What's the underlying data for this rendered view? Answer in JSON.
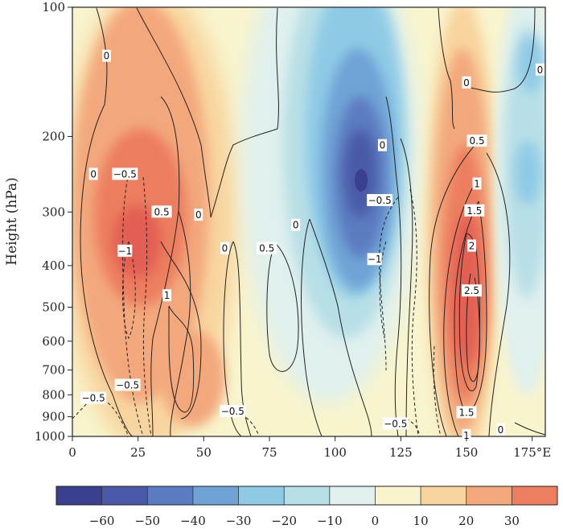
{
  "chart_data": {
    "type": "heatmap",
    "title": "",
    "xlabel": "",
    "ylabel": "Height (hPa)",
    "x_axis": {
      "range": [
        0,
        180
      ],
      "ticks": [
        0,
        25,
        50,
        75,
        100,
        125,
        150,
        175
      ],
      "tick_labels": [
        "0",
        "25",
        "50",
        "75",
        "100",
        "125",
        "150",
        "175°E"
      ]
    },
    "y_axis": {
      "scale": "log",
      "range": [
        1000,
        100
      ],
      "ticks": [
        100,
        200,
        300,
        400,
        500,
        600,
        700,
        800,
        900,
        1000
      ],
      "tick_labels": [
        "100",
        "200",
        "300",
        "400",
        "500",
        "600",
        "700",
        "800",
        "900",
        "1000"
      ]
    },
    "colorbar": {
      "levels": [
        -70,
        -60,
        -50,
        -40,
        -30,
        -20,
        -10,
        0,
        10,
        20,
        30,
        40
      ],
      "tick_labels": [
        "−60",
        "−50",
        "−40",
        "−30",
        "−20",
        "−10",
        "0",
        "10",
        "20",
        "30"
      ],
      "colors": [
        "#3a3f8f",
        "#4a5aa8",
        "#5b7cc0",
        "#6fa3d6",
        "#8ecae6",
        "#b8dfe6",
        "#dff0ee",
        "#f8f4cd",
        "#f8d49e",
        "#f3a87b",
        "#ec7e5f",
        "#e35f53"
      ]
    },
    "shaded_field_features": [
      {
        "kind": "positive maximum",
        "x": 22,
        "p": 300,
        "value": 40
      },
      {
        "kind": "positive maximum",
        "x": 148,
        "p": 400,
        "value": 40
      },
      {
        "kind": "negative minimum",
        "x": 108,
        "p": 260,
        "value": -70
      },
      {
        "kind": "negative minimum",
        "x": 173,
        "p": 260,
        "value": -20
      }
    ],
    "contour_labels": [
      {
        "text": "0",
        "x": 13,
        "p": 130
      },
      {
        "text": "0",
        "x": 8,
        "p": 245
      },
      {
        "text": "−0.5",
        "x": 20,
        "p": 245
      },
      {
        "text": "0.5",
        "x": 34,
        "p": 300
      },
      {
        "text": "0",
        "x": 48,
        "p": 305
      },
      {
        "text": "−1",
        "x": 20,
        "p": 370
      },
      {
        "text": "1",
        "x": 36,
        "p": 470
      },
      {
        "text": "0",
        "x": 58,
        "p": 365
      },
      {
        "text": "0.5",
        "x": 74,
        "p": 365
      },
      {
        "text": "0",
        "x": 85,
        "p": 322
      },
      {
        "text": "0",
        "x": 118,
        "p": 210
      },
      {
        "text": "−0.5",
        "x": 117,
        "p": 282
      },
      {
        "text": "−1",
        "x": 115,
        "p": 387
      },
      {
        "text": "0",
        "x": 150,
        "p": 150
      },
      {
        "text": "0.5",
        "x": 154,
        "p": 205
      },
      {
        "text": "1",
        "x": 154,
        "p": 258
      },
      {
        "text": "1.5",
        "x": 153,
        "p": 298
      },
      {
        "text": "2",
        "x": 152,
        "p": 360
      },
      {
        "text": "2.5",
        "x": 152,
        "p": 458
      },
      {
        "text": "−0.5",
        "x": 21,
        "p": 760
      },
      {
        "text": "−0.5",
        "x": 8,
        "p": 815
      },
      {
        "text": "−0.5",
        "x": 61,
        "p": 875
      },
      {
        "text": "−0.5",
        "x": 123,
        "p": 935
      },
      {
        "text": "1.5",
        "x": 150,
        "p": 880
      },
      {
        "text": "1",
        "x": 150,
        "p": 995
      },
      {
        "text": "0",
        "x": 163,
        "p": 965
      },
      {
        "text": "0",
        "x": 178,
        "p": 140
      }
    ]
  }
}
